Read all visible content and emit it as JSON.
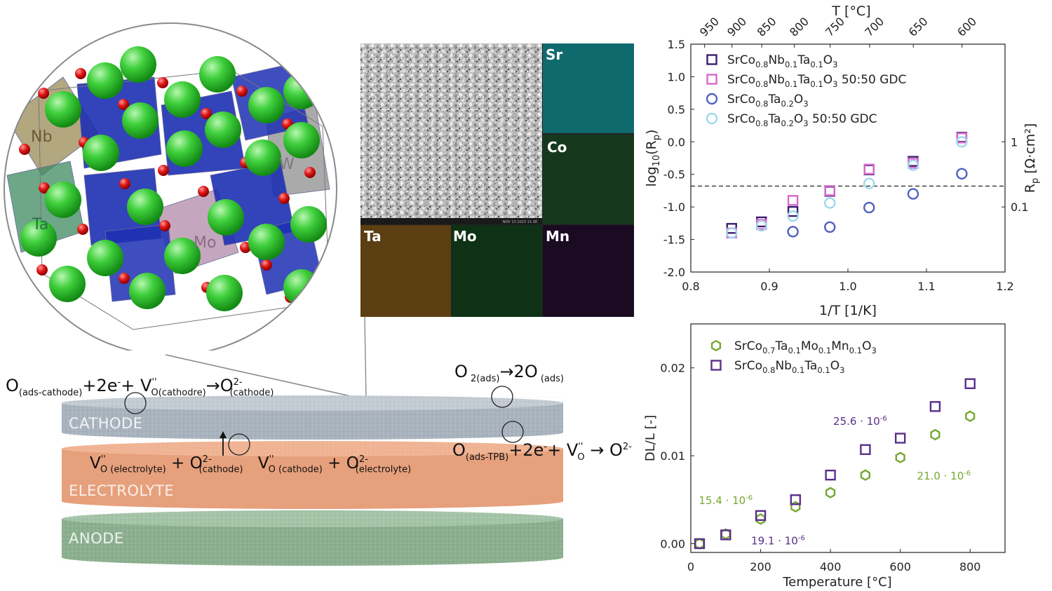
{
  "crystal": {
    "labels": {
      "nb": "Nb",
      "ta": "Ta",
      "mo": "Mo",
      "w": "W"
    }
  },
  "edx": {
    "tiles": [
      "Sr",
      "Co",
      "Ta",
      "Mo",
      "Mn"
    ],
    "sem_footer": "NOV 13 2023 11:38",
    "colors": {
      "Sr": "#0f6a6e",
      "Co": "#17381c",
      "Ta": "#5b3e12",
      "Mo": "#0f3116",
      "Mn": "#1a0b22"
    }
  },
  "cell": {
    "layers": {
      "cathode": "CATHODE",
      "electrolyte": "ELECTROLYTE",
      "anode": "ANODE"
    },
    "colors": {
      "cathode": "#a7b2bd",
      "electrolyte": "#e6a07c",
      "anode": "#8aae8e"
    }
  },
  "reactions": {
    "r1": {
      "o": "O",
      "sub1": "(ads-cathode)",
      "mid": "+2e",
      "sup1": "-",
      "plus": "+ V",
      "sub2": "O(cathodre)",
      "sup2": "''",
      "arrow": "→O",
      "sup3": "2-",
      "sub3": "(cathode)"
    },
    "r2": {
      "a": "O",
      "sub1": " 2(ads)",
      "b": "→2O",
      "sub2": " (ads)"
    },
    "r3": {
      "v1": "V",
      "sup1": "''",
      "sub1": "O (electrolyte)",
      "plus1": " + O",
      "sup2": "2-",
      "sub2": "(cathode)",
      "v2": " V",
      "sup3": "''",
      "sub3": "O (cathode)",
      "plus2": " + O",
      "sup4": "2-",
      "sub4": "(electrolyte)"
    },
    "r4": {
      "o": "O",
      "sub1": "(ads-TPB)",
      "mid": "+2e",
      "sup1": "-",
      "plus": "+ V",
      "sup2": "''",
      "sub2": "O",
      "arrow": " → O",
      "sup3": "2-"
    }
  },
  "chart_data": [
    {
      "type": "scatter",
      "title": "",
      "xlabel": "1/T [1/K]",
      "ylabel": "log10(Rp)",
      "ylabel_right": "Rp [Ω·cm²]",
      "xlabel_top": "T [°C]",
      "xlim": [
        0.8,
        1.2
      ],
      "ylim": [
        -2.0,
        1.5
      ],
      "xticks": [
        "0.8",
        "0.9",
        "1.0",
        "1.1",
        "1.2"
      ],
      "yticks": [
        "1.5",
        "1.0",
        "0.5",
        "0.0",
        "-0.5",
        "-1.0",
        "-1.5",
        "-2.0"
      ],
      "top_ticks": [
        "950",
        "900",
        "850",
        "800",
        "750",
        "700",
        "650",
        "600"
      ],
      "right_ticks": [
        "1",
        "0.1"
      ],
      "reference_line_y": -0.68,
      "grid": false,
      "legend_position": "top-left",
      "series": [
        {
          "name": "SrCo0.8Nb0.1Ta0.1O3",
          "marker": "square",
          "color": "#3b1f6e",
          "x": [
            0.852,
            0.89,
            0.93,
            0.977,
            1.027,
            1.083,
            1.145
          ],
          "y": [
            -1.33,
            -1.23,
            -1.07,
            -0.76,
            -0.43,
            -0.3,
            0.07
          ]
        },
        {
          "name": "SrCo0.8Nb0.1Ta0.1O3 50:50 GDC",
          "marker": "square",
          "color": "#d868cc",
          "x": [
            0.852,
            0.89,
            0.93,
            0.977,
            1.027,
            1.083,
            1.145
          ],
          "y": [
            -1.4,
            -1.27,
            -0.9,
            -0.75,
            -0.42,
            -0.33,
            0.06
          ]
        },
        {
          "name": "SrCo0.8Ta0.2O3",
          "marker": "circle",
          "color": "#5060c0",
          "x": [
            0.93,
            0.977,
            1.027,
            1.083,
            1.145
          ],
          "y": [
            -1.38,
            -1.31,
            -1.01,
            -0.8,
            -0.49
          ]
        },
        {
          "name": "SrCo0.8Ta0.2O3 50:50 GDC",
          "marker": "circle",
          "color": "#9ed8ec",
          "x": [
            0.852,
            0.89,
            0.93,
            0.977,
            1.027,
            1.083,
            1.145
          ],
          "y": [
            -1.4,
            -1.29,
            -1.14,
            -0.94,
            -0.64,
            -0.36,
            0.0
          ]
        }
      ],
      "legend_labels": [
        {
          "base": "SrCo",
          "s1": "0.8",
          "m1": "Nb",
          "s2": "0.1",
          "m2": "Ta",
          "s3": "0.1",
          "m3": "O",
          "s4": "3",
          "tail": ""
        },
        {
          "base": "SrCo",
          "s1": "0.8",
          "m1": "Nb",
          "s2": "0.1",
          "m2": "Ta",
          "s3": "0.1",
          "m3": "O",
          "s4": "3",
          "tail": " 50:50 GDC"
        },
        {
          "base": "SrCo",
          "s1": "0.8",
          "m1": "Ta",
          "s2": "0.2",
          "m2": "O",
          "s3": "3",
          "m3": "",
          "s4": "",
          "tail": ""
        },
        {
          "base": "SrCo",
          "s1": "0.8",
          "m1": "Ta",
          "s2": "0.2",
          "m2": "O",
          "s3": "3",
          "m3": "",
          "s4": "",
          "tail": " 50:50 GDC"
        }
      ]
    },
    {
      "type": "scatter",
      "title": "",
      "xlabel": "Temperature [°C]",
      "ylabel": "DL/L [-]",
      "xlim": [
        0,
        900
      ],
      "ylim": [
        -0.001,
        0.025
      ],
      "xticks": [
        "0",
        "200",
        "400",
        "600",
        "800"
      ],
      "yticks": [
        "0.02",
        "0.01",
        "0.00"
      ],
      "grid": false,
      "legend_position": "top-left",
      "series": [
        {
          "name": "SrCo0.7Ta0.1Mo0.1Mn0.1O3",
          "marker": "hexagon",
          "color": "#74a832",
          "x": [
            25,
            100,
            200,
            300,
            400,
            500,
            600,
            700,
            800
          ],
          "y": [
            0.0,
            0.0011,
            0.0028,
            0.0042,
            0.0058,
            0.0078,
            0.0098,
            0.0124,
            0.0145
          ]
        },
        {
          "name": "SrCo0.8Nb0.1Ta0.1O3",
          "marker": "square",
          "color": "#5a2f8a",
          "x": [
            25,
            100,
            200,
            300,
            400,
            500,
            600,
            700,
            800
          ],
          "y": [
            0.0,
            0.001,
            0.0032,
            0.005,
            0.0078,
            0.0107,
            0.012,
            0.0156,
            0.0182
          ]
        }
      ],
      "legend_labels": [
        {
          "base": "SrCo",
          "s1": "0.7",
          "m1": "Ta",
          "s2": "0.1",
          "m2": "Mo",
          "s3": "0.1",
          "m3": "Mn",
          "s4": "0.1",
          "m4": "O",
          "s5": "3"
        },
        {
          "base": "SrCo",
          "s1": "0.8",
          "m1": "Nb",
          "s2": "0.1",
          "m2": "Ta",
          "s3": "0.1",
          "m3": "O",
          "s4": "3",
          "m4": "",
          "s5": ""
        }
      ],
      "annotations": [
        {
          "text": "15.4 · 10",
          "sup": "-6",
          "color": "#74a832"
        },
        {
          "text": "19.1 · 10",
          "sup": "-6",
          "color": "#5a2f8a"
        },
        {
          "text": "25.6 · 10",
          "sup": "-6",
          "color": "#5a2f8a"
        },
        {
          "text": "21.0 · 10",
          "sup": "-6",
          "color": "#74a832"
        }
      ]
    }
  ]
}
